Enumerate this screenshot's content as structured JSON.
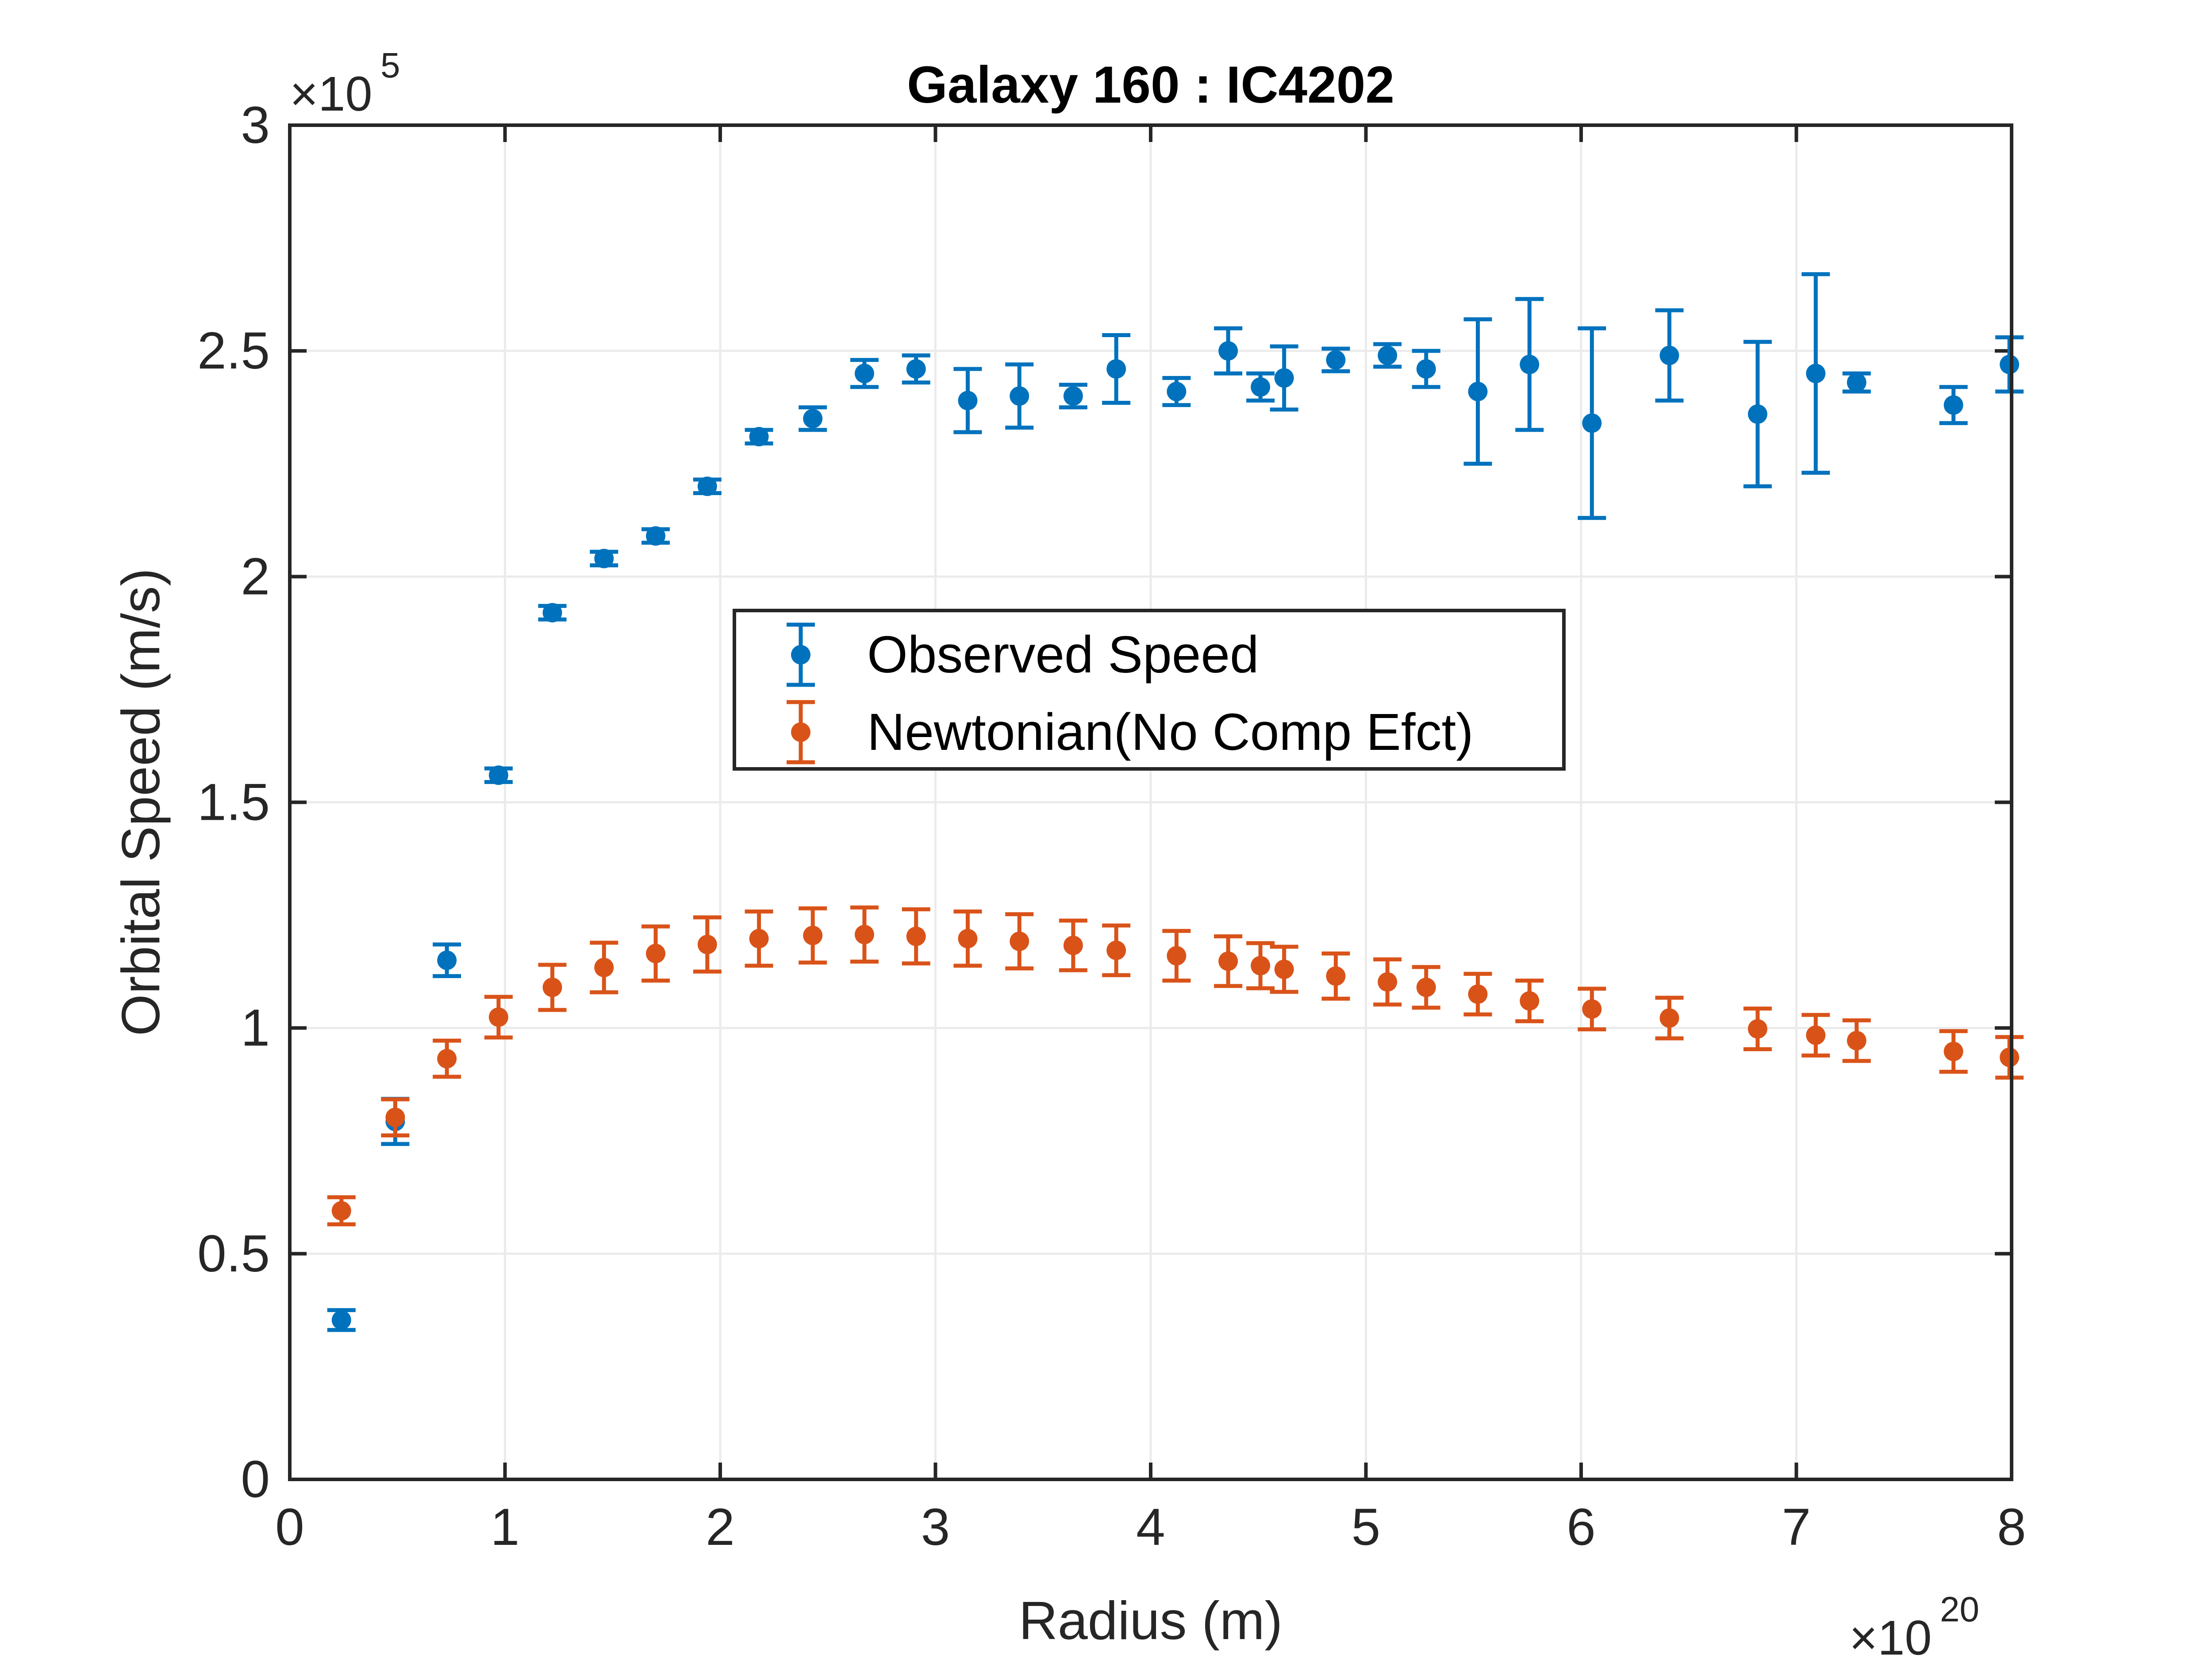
{
  "chart_data": {
    "type": "scatter",
    "title": "Galaxy 160 : IC4202",
    "xlabel": "Radius (m)",
    "ylabel": "Orbital Speed (m/s)",
    "x_exponent_label": "×10",
    "x_exponent": "20",
    "y_exponent_label": "×10",
    "y_exponent": "5",
    "xlim": [
      0,
      8
    ],
    "ylim": [
      0,
      3
    ],
    "xticks": [
      0,
      1,
      2,
      3,
      4,
      5,
      6,
      7,
      8
    ],
    "yticks": [
      0,
      0.5,
      1,
      1.5,
      2,
      2.5,
      3
    ],
    "xtick_labels": [
      "0",
      "1",
      "2",
      "3",
      "4",
      "5",
      "6",
      "7",
      "8"
    ],
    "ytick_labels": [
      "0",
      "0.5",
      "1",
      "1.5",
      "2",
      "2.5",
      "3"
    ],
    "grid": true,
    "legend_position": "center",
    "series": [
      {
        "name": "Observed Speed",
        "color": "#0072BD",
        "x": [
          0.24,
          0.49,
          0.73,
          0.97,
          1.22,
          1.46,
          1.7,
          1.94,
          2.18,
          2.43,
          2.67,
          2.91,
          3.15,
          3.39,
          3.64,
          3.84,
          4.12,
          4.36,
          4.51,
          4.62,
          4.86,
          5.1,
          5.28,
          5.52,
          5.76,
          6.05,
          6.41,
          6.82,
          7.09,
          7.28,
          7.73,
          7.99
        ],
        "y": [
          0.353,
          0.793,
          1.15,
          1.56,
          1.92,
          2.04,
          2.09,
          2.2,
          2.31,
          2.35,
          2.45,
          2.46,
          2.39,
          2.4,
          2.4,
          2.46,
          2.41,
          2.5,
          2.42,
          2.44,
          2.48,
          2.49,
          2.46,
          2.41,
          2.47,
          2.34,
          2.49,
          2.36,
          2.45,
          2.43,
          2.38,
          2.47
        ],
        "err": [
          0.022,
          0.05,
          0.035,
          0.015,
          0.015,
          0.015,
          0.015,
          0.015,
          0.015,
          0.025,
          0.03,
          0.03,
          0.07,
          0.07,
          0.025,
          0.075,
          0.03,
          0.05,
          0.03,
          0.07,
          0.025,
          0.025,
          0.04,
          0.16,
          0.145,
          0.21,
          0.1,
          0.16,
          0.22,
          0.02,
          0.04,
          0.06
        ]
      },
      {
        "name": "Newtonian(No Comp Efct)",
        "color": "#D95319",
        "x": [
          0.24,
          0.49,
          0.73,
          0.97,
          1.22,
          1.46,
          1.7,
          1.94,
          2.18,
          2.43,
          2.67,
          2.91,
          3.15,
          3.39,
          3.64,
          3.84,
          4.12,
          4.36,
          4.51,
          4.62,
          4.86,
          5.1,
          5.28,
          5.52,
          5.76,
          6.05,
          6.41,
          6.82,
          7.09,
          7.28,
          7.73,
          7.99
        ],
        "y": [
          0.595,
          0.802,
          0.932,
          1.024,
          1.09,
          1.134,
          1.165,
          1.185,
          1.198,
          1.205,
          1.207,
          1.203,
          1.198,
          1.192,
          1.183,
          1.172,
          1.16,
          1.148,
          1.138,
          1.13,
          1.115,
          1.102,
          1.09,
          1.075,
          1.06,
          1.042,
          1.022,
          0.998,
          0.984,
          0.972,
          0.948,
          0.935
        ],
        "err": [
          0.03,
          0.04,
          0.04,
          0.045,
          0.05,
          0.055,
          0.06,
          0.06,
          0.06,
          0.06,
          0.06,
          0.06,
          0.06,
          0.06,
          0.055,
          0.055,
          0.055,
          0.055,
          0.05,
          0.05,
          0.05,
          0.05,
          0.045,
          0.045,
          0.045,
          0.045,
          0.045,
          0.045,
          0.045,
          0.045,
          0.045,
          0.045
        ]
      }
    ]
  }
}
